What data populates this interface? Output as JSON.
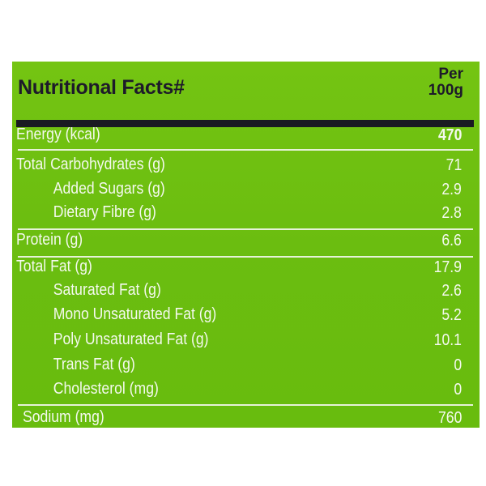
{
  "label": {
    "title": "Nutritional Facts#",
    "per_line1": "Per",
    "per_line2": "100g",
    "background_color": "#6cbf10",
    "rows": [
      {
        "label": "Energy (kcal)",
        "value": "470"
      },
      {
        "label": "Total Carbohydrates (g)",
        "value": "71"
      },
      {
        "label": "Added Sugars (g)",
        "value": "2.9"
      },
      {
        "label": "Dietary Fibre (g)",
        "value": "2.8"
      },
      {
        "label": "Protein (g)",
        "value": "6.6"
      },
      {
        "label": "Total Fat (g)",
        "value": "17.9"
      },
      {
        "label": "Saturated Fat (g)",
        "value": "2.6"
      },
      {
        "label": "Mono Unsaturated Fat (g)",
        "value": "5.2"
      },
      {
        "label": "Poly Unsaturated Fat (g)",
        "value": "10.1"
      },
      {
        "label": "Trans Fat (g)",
        "value": "0"
      },
      {
        "label": "Cholesterol (mg)",
        "value": "0"
      },
      {
        "label": "Sodium (mg)",
        "value": "760"
      }
    ]
  }
}
